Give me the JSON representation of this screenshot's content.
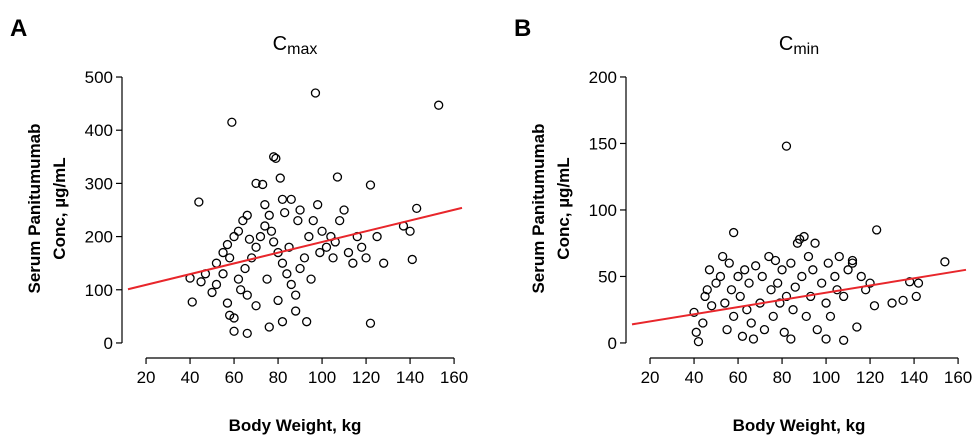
{
  "chart_data": [
    {
      "type": "scatter",
      "panel_label": "A",
      "title": "C",
      "title_sub": "max",
      "xlabel": "Body Weight, kg",
      "ylabel": [
        "Serum Panitumumab",
        "Conc, µg/mL"
      ],
      "xlim": [
        11.8,
        163.6
      ],
      "ylim": [
        -17,
        522.6
      ],
      "xticks": [
        20,
        40,
        60,
        80,
        100,
        120,
        140,
        160
      ],
      "yticks": [
        0,
        100,
        200,
        300,
        400,
        500
      ],
      "point_color": "#000000",
      "fit_color": "#e8262b",
      "x": [
        97,
        153,
        59,
        78,
        79,
        81,
        107,
        122,
        70,
        73,
        44,
        143,
        137,
        140,
        141,
        122,
        82,
        76,
        60,
        66,
        40,
        41,
        58,
        60,
        50,
        45,
        47,
        52,
        55,
        57,
        60,
        62,
        64,
        66,
        68,
        70,
        72,
        74,
        76,
        78,
        80,
        82,
        84,
        86,
        88,
        90,
        92,
        94,
        96,
        98,
        100,
        102,
        104,
        106,
        108,
        110,
        112,
        114,
        116,
        118,
        120,
        125,
        128,
        86,
        90,
        63,
        55,
        65,
        75,
        85,
        95,
        105,
        80,
        70,
        88,
        93,
        62,
        52,
        57,
        66,
        74,
        82,
        89,
        99,
        67,
        77,
        83,
        58
      ],
      "y": [
        470,
        447,
        415,
        350,
        347,
        310,
        312,
        297,
        300,
        298,
        265,
        253,
        220,
        210,
        157,
        37,
        40,
        30,
        22,
        18,
        122,
        77,
        52,
        47,
        95,
        115,
        130,
        150,
        170,
        185,
        200,
        210,
        230,
        240,
        160,
        180,
        200,
        220,
        240,
        190,
        170,
        150,
        130,
        110,
        90,
        140,
        160,
        200,
        230,
        260,
        210,
        180,
        200,
        190,
        230,
        250,
        170,
        150,
        200,
        180,
        160,
        200,
        150,
        270,
        250,
        100,
        130,
        140,
        120,
        180,
        120,
        160,
        80,
        70,
        60,
        40,
        120,
        110,
        75,
        90,
        260,
        270,
        230,
        170,
        195,
        210,
        245,
        160
      ],
      "fit_x": [
        11.8,
        163.6
      ],
      "fit_y": [
        101,
        254
      ]
    },
    {
      "type": "scatter",
      "panel_label": "B",
      "title": "C",
      "title_sub": "min",
      "xlabel": "Body Weight, kg",
      "ylabel": [
        "Serum Panitumumab",
        "Conc, µg/mL"
      ],
      "xlim": [
        11.8,
        163.6
      ],
      "ylim": [
        -6.8,
        209
      ],
      "xticks": [
        20,
        40,
        60,
        80,
        100,
        120,
        140,
        160
      ],
      "yticks": [
        0,
        50,
        100,
        150,
        200
      ],
      "point_color": "#000000",
      "fit_color": "#e8262b",
      "x": [
        82,
        154,
        123,
        58,
        138,
        142,
        141,
        130,
        135,
        40,
        41,
        42,
        44,
        45,
        46,
        47,
        48,
        50,
        52,
        53,
        54,
        55,
        56,
        57,
        58,
        60,
        61,
        62,
        63,
        64,
        65,
        66,
        68,
        70,
        71,
        72,
        74,
        75,
        76,
        77,
        78,
        79,
        80,
        81,
        82,
        84,
        85,
        86,
        87,
        88,
        89,
        90,
        91,
        92,
        93,
        94,
        95,
        96,
        98,
        100,
        101,
        102,
        104,
        105,
        106,
        108,
        110,
        112,
        114,
        116,
        118,
        120,
        122,
        100,
        67,
        84,
        112,
        108
      ],
      "y": [
        148,
        61,
        85,
        83,
        46,
        45,
        35,
        30,
        32,
        23,
        8,
        1,
        15,
        35,
        40,
        55,
        28,
        45,
        50,
        65,
        30,
        10,
        60,
        40,
        20,
        50,
        35,
        5,
        55,
        25,
        45,
        15,
        58,
        30,
        50,
        10,
        65,
        40,
        20,
        62,
        45,
        30,
        55,
        8,
        35,
        60,
        25,
        42,
        75,
        78,
        50,
        80,
        20,
        65,
        35,
        55,
        75,
        10,
        45,
        30,
        60,
        20,
        50,
        40,
        65,
        35,
        55,
        62,
        12,
        50,
        40,
        45,
        28,
        3,
        3,
        3,
        60,
        2
      ],
      "fit_x": [
        11.8,
        163.6
      ],
      "fit_y": [
        14,
        55
      ]
    }
  ]
}
